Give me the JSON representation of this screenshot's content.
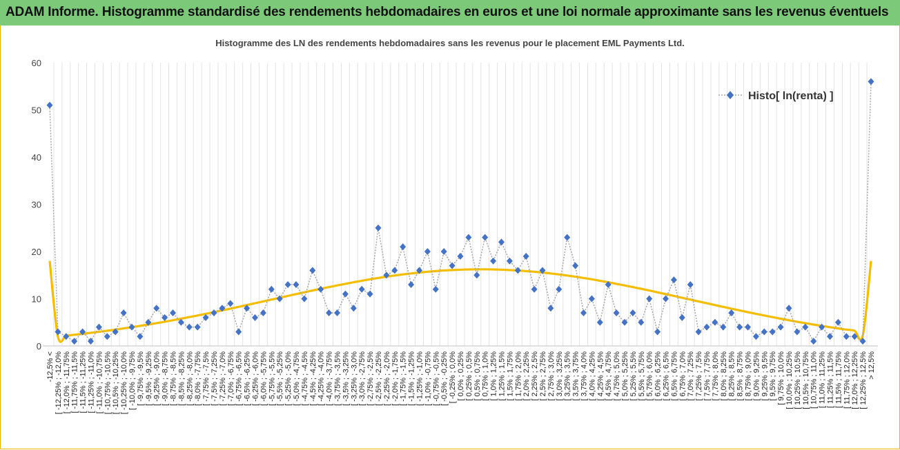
{
  "banner": {
    "title": "ADAM Informe. Histogramme standardisé des rendements hebdomadaires en euros et une loi normale approximante sans les revenus éventuels"
  },
  "chart_data": {
    "type": "line",
    "title": "Histogramme  des LN des rendements hebdomadaires sans les revenus pour le placement EML Payments Ltd.",
    "xlabel": "",
    "ylabel": "",
    "ylim": [
      0,
      60
    ],
    "yticks": [
      0,
      10,
      20,
      30,
      40,
      50,
      60
    ],
    "grid": "vertical",
    "legend_position": "top-right",
    "categories": [
      "-12,5% <",
      "[ -12,25% ; -12,0%",
      "[ -12,0% ; -11,75%",
      "[ -11,75% ; -11,5%",
      "[ -11,5% ; -11,25%",
      "[ -11,25% ; -11,0%",
      "[ -11,0% ; -10,75%",
      "[ -10,75% ; -10,5%",
      "[ -10,5% ; -10,25%",
      "[ -10,25% ; -10,0%",
      "[ -10,0% ; -9,75%",
      "[ -9,75% ; -9,5%",
      "[ -9,5% ; -9,25%",
      "[ -9,25% ; -9,0%",
      "[ -9,0% ; -8,75%",
      "[ -8,75% ; -8,5%",
      "[ -8,5% ; -8,25%",
      "[ -8,25% ; -8,0%",
      "[ -8,0% ; -7,75%",
      "[ -7,75% ; -7,5%",
      "[ -7,5% ; -7,25%",
      "[ -7,25% ; -7,0%",
      "[ -7,0% ; -6,75%",
      "[ -6,75% ; -6,5%",
      "[ -6,5% ; -6,25%",
      "[ -6,25% ; -6,0%",
      "[ -6,0% ; -5,75%",
      "[ -5,75% ; -5,5%",
      "[ -5,5% ; -5,25%",
      "[ -5,25% ; -5,0%",
      "[ -5,0% ; -4,75%",
      "[ -4,75% ; -4,5%",
      "[ -4,5% ; -4,25%",
      "[ -4,25% ; -4,0%",
      "[ -4,0% ; -3,75%",
      "[ -3,75% ; -3,5%",
      "[ -3,5% ; -3,25%",
      "[ -3,25% ; -3,0%",
      "[ -3,0% ; -2,75%",
      "[ -2,75% ; -2,5%",
      "[ -2,5% ; -2,25%",
      "[ -2,25% ; -2,0%",
      "[ -2,0% ; -1,75%",
      "[ -1,75% ; -1,5%",
      "[ -1,5% ; -1,25%",
      "[ -1,25% ; -1,0%",
      "[ -1,0% ; -0,75%",
      "[ -0,75% ; -0,5%",
      "[ -0,5% ; -0,25%",
      "[ -0,25% ; 0,0%",
      "[ 0,0% ; 0,25%",
      "[ 0,25% ; 0,5%",
      "[ 0,5% ; 0,75%",
      "[ 0,75% ; 1,0%",
      "[ 1,0% ; 1,25%",
      "[ 1,25% ; 1,5%",
      "[ 1,5% ; 1,75%",
      "[ 1,75% ; 2,0%",
      "[ 2,0% ; 2,25%",
      "[ 2,25% ; 2,5%",
      "[ 2,5% ; 2,75%",
      "[ 2,75% ; 3,0%",
      "[ 3,0% ; 3,25%",
      "[ 3,25% ; 3,5%",
      "[ 3,5% ; 3,75%",
      "[ 3,75% ; 4,0%",
      "[ 4,0% ; 4,25%",
      "[ 4,25% ; 4,5%",
      "[ 4,5% ; 4,75%",
      "[ 4,75% ; 5,0%",
      "[ 5,0% ; 5,25%",
      "[ 5,25% ; 5,5%",
      "[ 5,5% ; 5,75%",
      "[ 5,75% ; 6,0%",
      "[ 6,0% ; 6,25%",
      "[ 6,25% ; 6,5%",
      "[ 6,5% ; 6,75%",
      "[ 6,75% ; 7,0%",
      "[ 7,0% ; 7,25%",
      "[ 7,25% ; 7,5%",
      "[ 7,5% ; 7,75%",
      "[ 7,75% ; 8,0%",
      "[ 8,0% ; 8,25%",
      "[ 8,25% ; 8,5%",
      "[ 8,5% ; 8,75%",
      "[ 8,75% ; 9,0%",
      "[ 9,0% ; 9,25%",
      "[ 9,25% ; 9,5%",
      "[ 9,5% ; 9,75%",
      "[ 9,75% ; 10,0%",
      "[ 10,0% ; 10,25%",
      "[ 10,25% ; 10,5%",
      "[ 10,5% ; 10,75%",
      "[ 10,75% ; 11,0%",
      "[ 11,0% ; 11,25%",
      "[ 11,25% ; 11,5%",
      "[ 11,5% ; 11,75%",
      "[ 11,75% ; 12,0%",
      "[ 12,0% ; 12,25%",
      "[ 12,25% ; 12,5%",
      "> 12,5%"
    ],
    "series": [
      {
        "name": "Histo[ ln(renta) ]",
        "style": "dotted-line-with-diamond-markers",
        "color": "#4472c4",
        "values": [
          51,
          3,
          2,
          1,
          3,
          1,
          4,
          2,
          3,
          7,
          4,
          2,
          5,
          8,
          6,
          7,
          5,
          4,
          4,
          6,
          7,
          8,
          9,
          3,
          8,
          6,
          7,
          12,
          10,
          13,
          13,
          10,
          16,
          12,
          7,
          7,
          11,
          8,
          12,
          11,
          25,
          15,
          16,
          21,
          13,
          16,
          20,
          12,
          20,
          17,
          19,
          23,
          15,
          23,
          18,
          22,
          18,
          16,
          19,
          12,
          16,
          8,
          12,
          23,
          17,
          7,
          10,
          5,
          13,
          7,
          5,
          7,
          5,
          10,
          3,
          10,
          14,
          6,
          13,
          3,
          4,
          5,
          4,
          7,
          4,
          4,
          2,
          3,
          3,
          4,
          8,
          3,
          4,
          1,
          4,
          2,
          5,
          2,
          2,
          1,
          56
        ]
      },
      {
        "name": "",
        "style": "smooth-thick-line",
        "color": "#f5bd00",
        "values": [
          18,
          2,
          2.18,
          2.36,
          2.56,
          2.77,
          2.99,
          3.22,
          3.46,
          3.71,
          3.97,
          4.25,
          4.53,
          4.83,
          5.13,
          5.45,
          5.77,
          6.11,
          6.45,
          6.8,
          7.16,
          7.53,
          7.9,
          8.28,
          8.66,
          9.05,
          9.43,
          9.82,
          10.21,
          10.6,
          10.98,
          11.36,
          11.74,
          12.11,
          12.47,
          12.82,
          13.16,
          13.49,
          13.81,
          14.11,
          14.4,
          14.67,
          14.92,
          15.15,
          15.36,
          15.55,
          15.72,
          15.86,
          15.98,
          16.08,
          16.16,
          16.21,
          16.23,
          16.23,
          16.21,
          16.16,
          16.08,
          15.98,
          15.86,
          15.72,
          15.55,
          15.36,
          15.15,
          14.92,
          14.67,
          14.4,
          14.11,
          13.81,
          13.49,
          13.16,
          12.82,
          12.47,
          12.11,
          11.74,
          11.36,
          10.98,
          10.6,
          10.21,
          9.82,
          9.43,
          9.05,
          8.66,
          8.28,
          7.9,
          7.53,
          7.16,
          6.8,
          6.45,
          6.11,
          5.77,
          5.45,
          5.13,
          4.83,
          4.53,
          4.25,
          3.97,
          3.71,
          3.46,
          3.22,
          2.2,
          18
        ]
      }
    ]
  }
}
